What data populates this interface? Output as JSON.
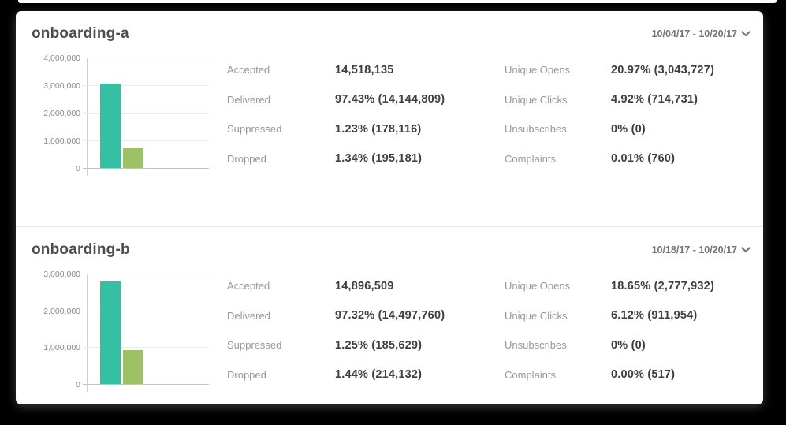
{
  "colors": {
    "teal": "#35bfa3",
    "green": "#9cc167",
    "text_dark": "#3e3e3e",
    "text_gray": "#979797"
  },
  "cards": [
    {
      "title": "onboarding-a",
      "date_range": "10/04/17 - 10/20/17",
      "stats_left": [
        {
          "label": "Accepted",
          "value": "14,518,135"
        },
        {
          "label": "Delivered",
          "value": "97.43% (14,144,809)"
        },
        {
          "label": "Suppressed",
          "value": "1.23% (178,116)"
        },
        {
          "label": "Dropped",
          "value": "1.34% (195,181)"
        }
      ],
      "stats_right": [
        {
          "label": "Unique Opens",
          "value": "20.97% (3,043,727)"
        },
        {
          "label": "Unique Clicks",
          "value": "4.92% (714,731)"
        },
        {
          "label": "Unsubscribes",
          "value": "0% (0)"
        },
        {
          "label": "Complaints",
          "value": "0.01% (760)"
        }
      ],
      "chart_data": {
        "type": "bar",
        "categories": [
          "Unique Opens",
          "Unique Clicks"
        ],
        "values": [
          3043727,
          714731
        ],
        "colors": [
          "#35bfa3",
          "#9cc167"
        ],
        "title": "",
        "xlabel": "",
        "ylabel": "",
        "ylim": [
          0,
          4000000
        ],
        "yticks": [
          0,
          1000000,
          2000000,
          3000000,
          4000000
        ],
        "ytick_labels": [
          "0",
          "1,000,000",
          "2,000,000",
          "3,000,000",
          "4,000,000"
        ],
        "grid": true,
        "legend": false
      }
    },
    {
      "title": "onboarding-b",
      "date_range": "10/18/17 - 10/20/17",
      "stats_left": [
        {
          "label": "Accepted",
          "value": "14,896,509"
        },
        {
          "label": "Delivered",
          "value": "97.32% (14,497,760)"
        },
        {
          "label": "Suppressed",
          "value": "1.25% (185,629)"
        },
        {
          "label": "Dropped",
          "value": "1.44% (214,132)"
        }
      ],
      "stats_right": [
        {
          "label": "Unique Opens",
          "value": "18.65% (2,777,932)"
        },
        {
          "label": "Unique Clicks",
          "value": "6.12% (911,954)"
        },
        {
          "label": "Unsubscribes",
          "value": "0% (0)"
        },
        {
          "label": "Complaints",
          "value": "0.00% (517)"
        }
      ],
      "chart_data": {
        "type": "bar",
        "categories": [
          "Unique Opens",
          "Unique Clicks"
        ],
        "values": [
          2777932,
          911954
        ],
        "colors": [
          "#35bfa3",
          "#9cc167"
        ],
        "title": "",
        "xlabel": "",
        "ylabel": "",
        "ylim": [
          0,
          3000000
        ],
        "yticks": [
          0,
          1000000,
          2000000,
          3000000
        ],
        "ytick_labels": [
          "0",
          "1,000,000",
          "2,000,000",
          "3,000,000"
        ],
        "grid": true,
        "legend": false
      }
    }
  ],
  "icons": {
    "chevron": "chevron-down-icon"
  }
}
